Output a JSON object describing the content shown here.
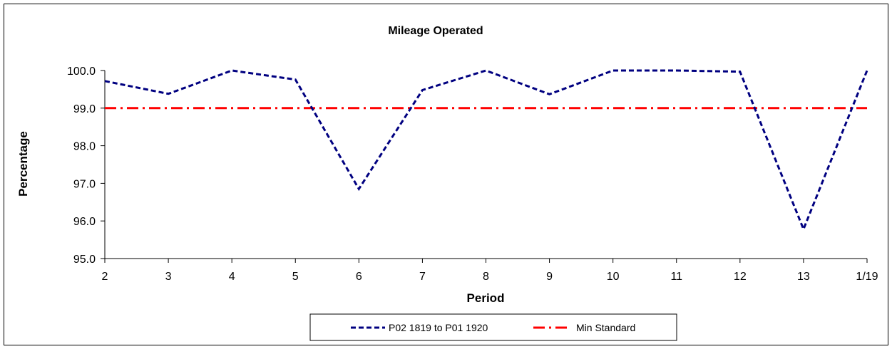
{
  "chart_data": {
    "type": "line",
    "title": "Mileage Operated",
    "xlabel": "Period",
    "ylabel": "Percentage",
    "categories": [
      "2",
      "3",
      "4",
      "5",
      "6",
      "7",
      "8",
      "9",
      "10",
      "11",
      "12",
      "13",
      "1/19"
    ],
    "ylim": [
      95.0,
      100.0
    ],
    "yticks": [
      "95.0",
      "96.0",
      "97.0",
      "98.0",
      "99.0",
      "100.0"
    ],
    "grid": false,
    "legend_position": "bottom",
    "series": [
      {
        "name": "P02 1819 to P01 1920",
        "color": "#000080",
        "style": "dashed",
        "values": [
          99.72,
          99.38,
          100.0,
          99.76,
          96.85,
          99.48,
          100.0,
          99.37,
          100.0,
          100.0,
          99.97,
          95.78,
          100.0
        ]
      },
      {
        "name": "Min Standard",
        "color": "#ff0000",
        "style": "dash-dot",
        "values": [
          99.0,
          99.0,
          99.0,
          99.0,
          99.0,
          99.0,
          99.0,
          99.0,
          99.0,
          99.0,
          99.0,
          99.0,
          99.0
        ]
      }
    ]
  }
}
